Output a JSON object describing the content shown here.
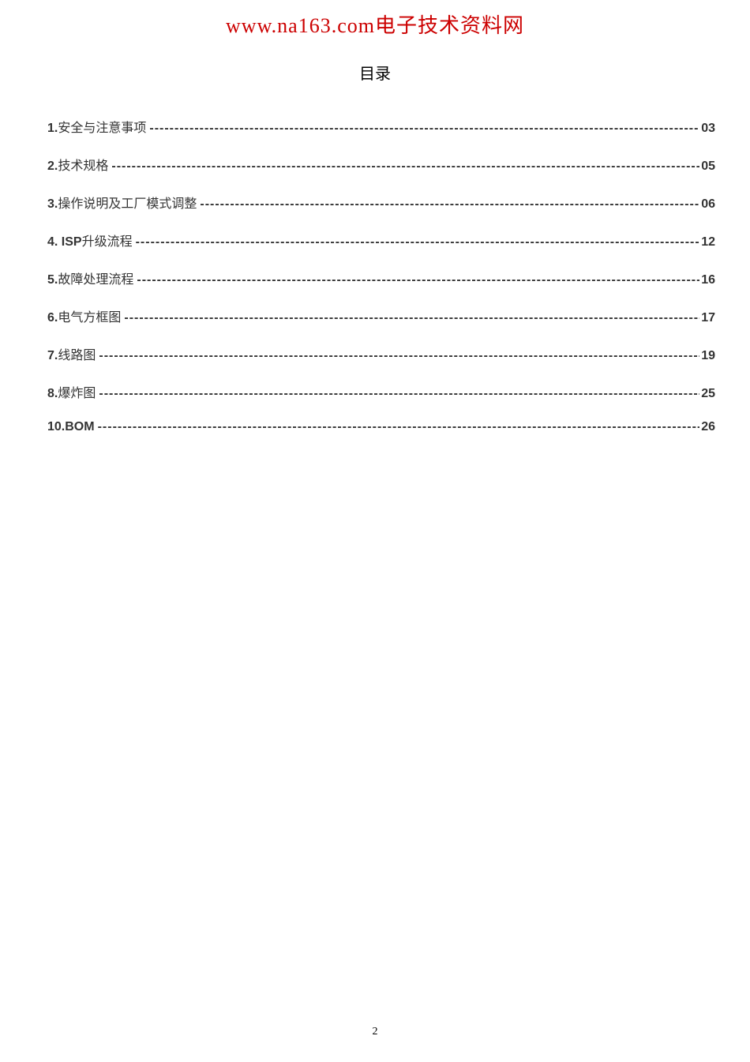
{
  "header": {
    "text": "www.na163.com电子技术资料网",
    "color": "#cc0000"
  },
  "toc": {
    "title": "目录",
    "entries": [
      {
        "num": "1.",
        "label": "安全与注意事项",
        "page": "03",
        "label_style": "cjk"
      },
      {
        "num": "2.",
        "label": "技术规格",
        "page": "05",
        "label_style": "cjk"
      },
      {
        "num": "3.",
        "label": "操作说明及工厂模式调整",
        "page": "06",
        "label_style": "cjk"
      },
      {
        "num": "4. ISP ",
        "label": "升级流程",
        "page": "12",
        "label_style": "cjk"
      },
      {
        "num": "5.",
        "label": "故障处理流程",
        "page": "16",
        "label_style": "cjk"
      },
      {
        "num": "6.",
        "label": "电气方框图",
        "page": "17",
        "label_style": "cjk"
      },
      {
        "num": "7.",
        "label": "线路图",
        "page": "19",
        "label_style": "cjk"
      },
      {
        "num": "8.",
        "label": "爆炸图",
        "page": "25",
        "label_style": "cjk"
      },
      {
        "num": "10. ",
        "label": "BOM",
        "page": "26",
        "label_style": "arial"
      }
    ]
  },
  "page_number": "2",
  "colors": {
    "background": "#ffffff",
    "header_text": "#cc0000",
    "body_text": "#333333",
    "page_num": "#000000"
  }
}
